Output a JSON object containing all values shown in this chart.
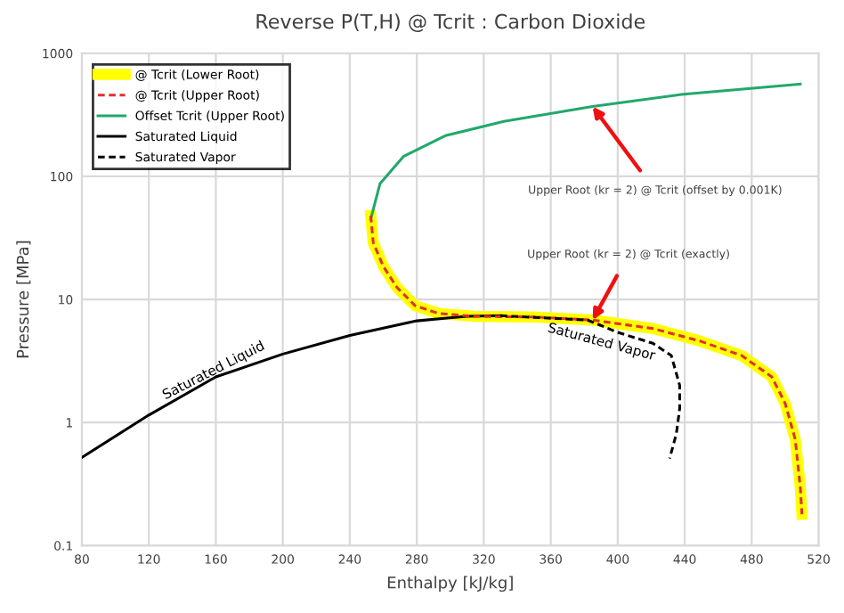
{
  "chart_data": {
    "type": "line",
    "title": "Reverse P(T,H) @ Tcrit : Carbon Dioxide",
    "xlabel": "Enthalpy [kJ/kg]",
    "ylabel": "Pressure [MPa]",
    "xlim": [
      80,
      520
    ],
    "xticks": [
      80,
      120,
      160,
      200,
      240,
      280,
      320,
      360,
      400,
      440,
      480,
      520
    ],
    "ylim": [
      0.1,
      1000
    ],
    "yticks": [
      0.1,
      1,
      10,
      100,
      1000
    ],
    "log": "y",
    "grid": true,
    "legend": "top left",
    "marker": "none",
    "series": [
      {
        "name": "@ Tcrit (Lower Root)",
        "color": "#ffff00",
        "line_style": "solid",
        "x": [
          252.5,
          254,
          260,
          268,
          279,
          293,
          314,
          350,
          385,
          421,
          449,
          474,
          492,
          500,
          506,
          509,
          510
        ],
        "values": [
          48,
          29,
          18.6,
          12.6,
          8.9,
          7.7,
          7.3,
          7.2,
          6.8,
          5.8,
          4.6,
          3.5,
          2.35,
          1.43,
          0.73,
          0.3,
          0.18
        ]
      },
      {
        "name": "@ Tcrit (Upper Root)",
        "color": "#e03030",
        "line_style": "dashed",
        "x": [
          252.5,
          254,
          260,
          268,
          279,
          293,
          314,
          350,
          385,
          421,
          449,
          474,
          492,
          500,
          506,
          509,
          510
        ],
        "values": [
          48,
          29,
          18.6,
          12.6,
          8.9,
          7.7,
          7.3,
          7.2,
          6.8,
          5.8,
          4.6,
          3.5,
          2.35,
          1.43,
          0.73,
          0.3,
          0.18
        ]
      },
      {
        "name": "Offset Tcrit (Upper Root)",
        "color": "#22a86a",
        "line_style": "solid",
        "x": [
          252.5,
          258,
          272,
          297,
          332,
          385,
          438,
          509
        ],
        "values": [
          45,
          87,
          145,
          214,
          280,
          370,
          463,
          562
        ]
      },
      {
        "name": "Saturated Liquid",
        "color": "#000000",
        "line_style": "solid",
        "x": [
          80,
          120,
          160,
          200,
          240,
          280,
          310,
          330
        ],
        "values": [
          0.52,
          1.15,
          2.35,
          3.6,
          5.1,
          6.7,
          7.3,
          7.38
        ]
      },
      {
        "name": "Saturated Vapor",
        "color": "#000000",
        "line_style": "dashed",
        "x": [
          330,
          382,
          400,
          421,
          432,
          437,
          437,
          435,
          431
        ],
        "values": [
          7.38,
          6.8,
          5.4,
          4.4,
          3.5,
          2.0,
          1.3,
          0.81,
          0.51
        ]
      }
    ],
    "annotations": [
      "Upper Root (kr = 2) @ Tcrit (offset by 0.001K)",
      "Upper Root (kr = 2) @ Tcrit (exactly)",
      "Saturated Liquid",
      "Saturated Vapor"
    ]
  }
}
